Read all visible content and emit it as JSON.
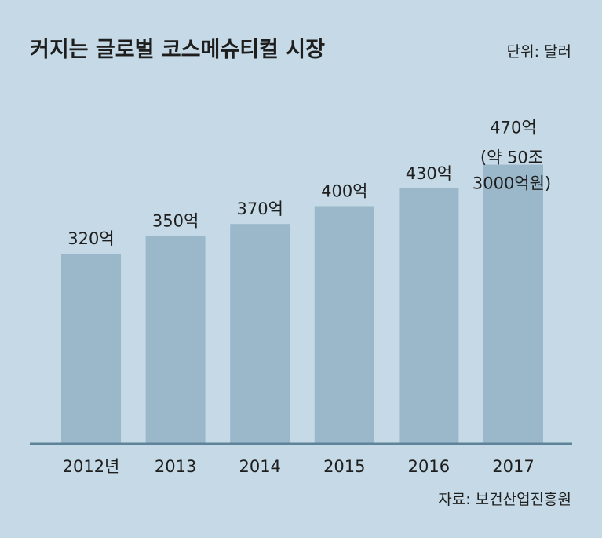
{
  "chart_data": {
    "type": "bar",
    "title": "커지는 글로벌 코스메슈티컬 시장",
    "unit_label": "단위: 달러",
    "source": "자료: 보건산업진흥원",
    "categories": [
      "2012년",
      "2013",
      "2014",
      "2015",
      "2016",
      "2017"
    ],
    "values": [
      320,
      350,
      370,
      400,
      430,
      470
    ],
    "data_labels": [
      "320억",
      "350억",
      "370억",
      "400억",
      "430억",
      "470억"
    ],
    "annotation": {
      "category": "2017",
      "lines": [
        "(약 50조",
        "3000억원)"
      ]
    },
    "ylim": [
      0,
      500
    ],
    "grid": false,
    "colors": {
      "background": "#c5dae6",
      "bar": "#9bb8cb",
      "baseline": "#5f8499",
      "text": "#1e1e1e"
    }
  }
}
